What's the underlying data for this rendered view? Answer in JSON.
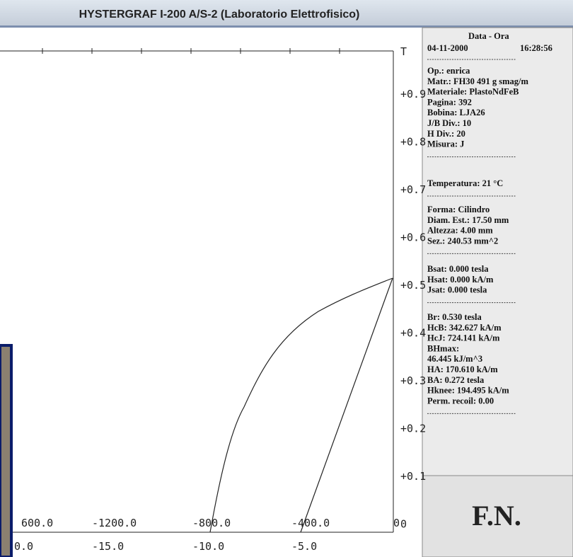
{
  "window": {
    "title": "HYSTERGRAF I-200 A/S-2 (Laboratorio Elettrofisico)"
  },
  "chart": {
    "unit": "T",
    "y_labels": [
      "+0.9",
      "+0.8",
      "+0.7",
      "+0.6",
      "+0.5",
      "+0.4",
      "+0.3",
      "+0.2",
      "+0.1",
      "0"
    ],
    "x_labels_top": [
      "600.0",
      "-1200.0",
      "-800.0",
      "-400.0",
      "0"
    ],
    "x_labels_bottom": [
      "0.0",
      "-15.0",
      "-10.0",
      "-5.0"
    ]
  },
  "panel": {
    "header": "Data  -  Ora",
    "date": "04-11-2000",
    "time": "16:28:56",
    "groups": [
      [
        "Op.: enrica",
        "Matr.: FH30 491 g smag/m",
        "Materiale: PlastoNdFeB",
        "Pagina: 392",
        "Bobina: LJA26",
        "J/B Div.: 10",
        "H Div.: 20",
        "Misura: J"
      ],
      [
        "Temperatura: 21  °C"
      ],
      [
        "Forma: Cilindro",
        "Diam. Est.: 17.50 mm",
        "Altezza: 4.00 mm",
        "Sez.: 240.53 mm^2"
      ],
      [
        "Bsat: 0.000 tesla",
        "Hsat: 0.000 kA/m",
        "Jsat: 0.000 tesla"
      ],
      [
        "Br: 0.530 tesla",
        "HcB: 342.627 kA/m",
        "HcJ: 724.141 kA/m",
        "BHmax:",
        "46.445 kJ/m^3",
        "HA: 170.610 kA/m",
        "BA: 0.272 tesla",
        "Hknee: 194.495 kA/m",
        "Perm. recoil: 0.00"
      ]
    ]
  },
  "logo": "F.N."
}
